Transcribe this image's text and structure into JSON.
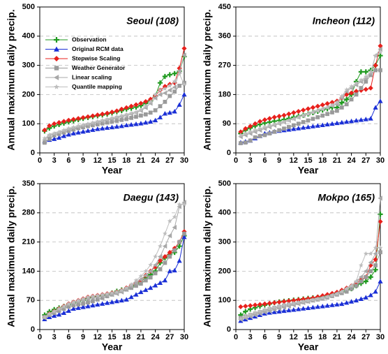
{
  "chart_data": [
    {
      "type": "line",
      "title": "Seoul (108)",
      "ylabel": "Annual maximum daily precip.",
      "xlabel": "Year",
      "x": [
        1,
        2,
        3,
        4,
        5,
        6,
        7,
        8,
        9,
        10,
        11,
        12,
        13,
        14,
        15,
        16,
        17,
        18,
        19,
        20,
        21,
        22,
        23,
        24,
        25,
        26,
        27,
        28,
        29,
        30
      ],
      "xlim": [
        0,
        30
      ],
      "xticks": [
        0,
        3,
        6,
        9,
        12,
        15,
        18,
        21,
        24,
        27,
        30
      ],
      "ylim": [
        0,
        500
      ],
      "yticks": [
        0,
        100,
        200,
        300,
        400,
        500
      ],
      "grid": true,
      "legend": "upper left",
      "series": [
        {
          "name": "Observation",
          "color": "#1f9a1f",
          "marker": "plus",
          "values": [
            75,
            85,
            92,
            97,
            102,
            106,
            110,
            114,
            118,
            121,
            124,
            127,
            130,
            133,
            137,
            141,
            145,
            150,
            153,
            157,
            162,
            170,
            178,
            195,
            240,
            262,
            268,
            272,
            280,
            330
          ]
        },
        {
          "name": "Original RCM data",
          "color": "#1a2fd6",
          "marker": "triangle",
          "values": [
            40,
            45,
            48,
            52,
            58,
            63,
            67,
            70,
            73,
            76,
            79,
            82,
            84,
            86,
            88,
            90,
            92,
            95,
            97,
            99,
            101,
            104,
            107,
            112,
            122,
            135,
            138,
            142,
            165,
            200
          ]
        },
        {
          "name": "Stepwise Scaling",
          "color": "#e8201c",
          "marker": "diamond",
          "values": [
            78,
            93,
            100,
            104,
            108,
            112,
            115,
            118,
            121,
            124,
            127,
            130,
            133,
            136,
            140,
            144,
            150,
            155,
            160,
            165,
            170,
            176,
            184,
            196,
            215,
            228,
            235,
            240,
            290,
            358
          ]
        },
        {
          "name": "Weather Generator",
          "color": "#9a9a9a",
          "marker": "square",
          "values": [
            35,
            48,
            60,
            65,
            70,
            75,
            80,
            85,
            88,
            92,
            95,
            98,
            101,
            104,
            107,
            110,
            113,
            116,
            120,
            124,
            128,
            132,
            138,
            146,
            160,
            175,
            195,
            210,
            230,
            240
          ]
        },
        {
          "name": "Linear scaling",
          "color": "#a8a8a8",
          "marker": "left-triangle",
          "values": [
            45,
            60,
            65,
            70,
            75,
            80,
            84,
            88,
            92,
            96,
            100,
            104,
            108,
            112,
            116,
            120,
            124,
            128,
            133,
            138,
            145,
            155,
            170,
            188,
            200,
            205,
            215,
            225,
            280,
            335
          ]
        },
        {
          "name": "Quantile mapping",
          "color": "#bdbdbd",
          "marker": "star",
          "values": [
            50,
            62,
            67,
            72,
            78,
            84,
            88,
            92,
            96,
            100,
            104,
            108,
            112,
            116,
            120,
            124,
            128,
            132,
            136,
            140,
            148,
            160,
            175,
            200,
            215,
            220,
            230,
            245,
            270,
            235
          ]
        }
      ]
    },
    {
      "type": "line",
      "title": "Incheon (112)",
      "ylabel": "Annual maximum daily precip.",
      "xlabel": "Year",
      "x": [
        1,
        2,
        3,
        4,
        5,
        6,
        7,
        8,
        9,
        10,
        11,
        12,
        13,
        14,
        15,
        16,
        17,
        18,
        19,
        20,
        21,
        22,
        23,
        24,
        25,
        26,
        27,
        28,
        29,
        30
      ],
      "xlim": [
        0,
        30
      ],
      "xticks": [
        0,
        3,
        6,
        9,
        12,
        15,
        18,
        21,
        24,
        27,
        30
      ],
      "ylim": [
        0,
        450
      ],
      "yticks": [
        0,
        90,
        180,
        270,
        360,
        450
      ],
      "grid": true,
      "series": [
        {
          "color": "#1f9a1f",
          "marker": "plus",
          "values": [
            60,
            70,
            77,
            83,
            88,
            92,
            95,
            98,
            100,
            103,
            106,
            110,
            113,
            116,
            120,
            124,
            128,
            132,
            136,
            140,
            140,
            155,
            165,
            180,
            220,
            250,
            250,
            255,
            270,
            300
          ]
        },
        {
          "color": "#1a2fd6",
          "marker": "triangle",
          "values": [
            32,
            35,
            38,
            45,
            52,
            60,
            63,
            66,
            68,
            70,
            72,
            74,
            76,
            78,
            80,
            82,
            84,
            86,
            88,
            90,
            92,
            94,
            96,
            98,
            100,
            102,
            104,
            106,
            140,
            160
          ]
        },
        {
          "color": "#e8201c",
          "marker": "diamond",
          "values": [
            65,
            75,
            82,
            90,
            97,
            102,
            106,
            110,
            113,
            116,
            120,
            124,
            128,
            132,
            136,
            140,
            144,
            148,
            152,
            156,
            160,
            170,
            180,
            185,
            190,
            193,
            196,
            200,
            270,
            330
          ]
        },
        {
          "color": "#9a9a9a",
          "marker": "square",
          "values": [
            30,
            32,
            38,
            48,
            52,
            55,
            60,
            65,
            70,
            75,
            80,
            85,
            90,
            95,
            100,
            105,
            110,
            115,
            120,
            125,
            130,
            140,
            150,
            165,
            180,
            200,
            220,
            240,
            255,
            255
          ]
        },
        {
          "color": "#a8a8a8",
          "marker": "left-triangle",
          "values": [
            50,
            55,
            60,
            65,
            70,
            75,
            80,
            85,
            90,
            95,
            100,
            105,
            110,
            115,
            120,
            125,
            130,
            135,
            140,
            145,
            150,
            170,
            190,
            200,
            210,
            220,
            230,
            245,
            300,
            320
          ]
        },
        {
          "color": "#bdbdbd",
          "marker": "star",
          "values": [
            55,
            60,
            65,
            70,
            75,
            80,
            84,
            88,
            92,
            96,
            100,
            105,
            110,
            115,
            120,
            125,
            130,
            135,
            140,
            148,
            156,
            175,
            195,
            205,
            215,
            225,
            235,
            250,
            300,
            310
          ]
        }
      ]
    },
    {
      "type": "line",
      "title": "Daegu (143)",
      "ylabel": "Annual maximum daily precip.",
      "xlabel": "Year",
      "x": [
        1,
        2,
        3,
        4,
        5,
        6,
        7,
        8,
        9,
        10,
        11,
        12,
        13,
        14,
        15,
        16,
        17,
        18,
        19,
        20,
        21,
        22,
        23,
        24,
        25,
        26,
        27,
        28,
        29,
        30
      ],
      "xlim": [
        0,
        30
      ],
      "xticks": [
        0,
        3,
        6,
        9,
        12,
        15,
        18,
        21,
        24,
        27,
        30
      ],
      "ylim": [
        0,
        350
      ],
      "yticks": [
        0,
        70,
        140,
        210,
        280,
        350
      ],
      "grid": true,
      "series": [
        {
          "color": "#1f9a1f",
          "marker": "plus",
          "values": [
            35,
            43,
            48,
            52,
            56,
            60,
            64,
            67,
            70,
            75,
            78,
            80,
            82,
            84,
            88,
            92,
            95,
            98,
            102,
            108,
            115,
            125,
            132,
            140,
            160,
            172,
            180,
            185,
            200,
            225
          ]
        },
        {
          "color": "#1a2fd6",
          "marker": "triangle",
          "values": [
            25,
            30,
            33,
            36,
            40,
            45,
            50,
            52,
            54,
            56,
            58,
            60,
            62,
            64,
            66,
            68,
            70,
            72,
            78,
            84,
            90,
            95,
            100,
            106,
            112,
            118,
            140,
            142,
            165,
            222
          ]
        },
        {
          "color": "#e8201c",
          "marker": "diamond",
          "values": [
            30,
            38,
            44,
            50,
            56,
            62,
            66,
            70,
            74,
            78,
            80,
            82,
            84,
            86,
            88,
            90,
            94,
            100,
            106,
            112,
            118,
            130,
            140,
            150,
            165,
            175,
            185,
            195,
            210,
            235
          ]
        },
        {
          "color": "#9a9a9a",
          "marker": "square",
          "values": [
            30,
            35,
            40,
            45,
            50,
            55,
            58,
            60,
            62,
            65,
            68,
            72,
            76,
            80,
            84,
            88,
            92,
            96,
            100,
            105,
            110,
            118,
            125,
            135,
            145,
            160,
            175,
            190,
            210,
            230
          ]
        },
        {
          "color": "#a8a8a8",
          "marker": "left-triangle",
          "values": [
            28,
            36,
            42,
            48,
            54,
            60,
            64,
            67,
            70,
            73,
            76,
            78,
            80,
            82,
            84,
            86,
            90,
            96,
            104,
            112,
            120,
            130,
            140,
            155,
            175,
            200,
            225,
            245,
            295,
            305
          ]
        },
        {
          "color": "#bdbdbd",
          "marker": "star",
          "values": [
            30,
            38,
            44,
            50,
            56,
            62,
            66,
            70,
            74,
            78,
            80,
            82,
            84,
            86,
            88,
            90,
            94,
            100,
            108,
            118,
            128,
            140,
            155,
            175,
            200,
            230,
            260,
            270,
            300,
            300
          ]
        }
      ]
    },
    {
      "type": "line",
      "title": "Mokpo (165)",
      "ylabel": "Annual maximum daily precip.",
      "xlabel": "Year",
      "x": [
        1,
        2,
        3,
        4,
        5,
        6,
        7,
        8,
        9,
        10,
        11,
        12,
        13,
        14,
        15,
        16,
        17,
        18,
        19,
        20,
        21,
        22,
        23,
        24,
        25,
        26,
        27,
        28,
        29,
        30
      ],
      "xlim": [
        0,
        30
      ],
      "xticks": [
        0,
        3,
        6,
        9,
        12,
        15,
        18,
        21,
        24,
        27,
        30
      ],
      "ylim": [
        0,
        500
      ],
      "yticks": [
        0,
        100,
        200,
        300,
        400,
        500
      ],
      "grid": true,
      "series": [
        {
          "color": "#1f9a1f",
          "marker": "plus",
          "values": [
            50,
            62,
            70,
            75,
            80,
            84,
            88,
            92,
            95,
            97,
            99,
            101,
            103,
            105,
            107,
            109,
            111,
            114,
            117,
            120,
            125,
            130,
            135,
            140,
            150,
            158,
            165,
            180,
            205,
            395
          ]
        },
        {
          "color": "#1a2fd6",
          "marker": "triangle",
          "values": [
            30,
            35,
            40,
            45,
            50,
            55,
            58,
            60,
            62,
            64,
            66,
            68,
            70,
            72,
            74,
            76,
            78,
            80,
            82,
            84,
            86,
            88,
            92,
            96,
            100,
            105,
            110,
            118,
            130,
            165
          ]
        },
        {
          "color": "#e8201c",
          "marker": "diamond",
          "values": [
            78,
            80,
            82,
            84,
            86,
            88,
            90,
            92,
            94,
            96,
            98,
            100,
            102,
            104,
            106,
            108,
            112,
            116,
            120,
            124,
            128,
            135,
            142,
            150,
            160,
            170,
            180,
            220,
            240,
            370
          ]
        },
        {
          "color": "#9a9a9a",
          "marker": "square",
          "values": [
            40,
            45,
            50,
            55,
            60,
            65,
            70,
            74,
            78,
            82,
            85,
            88,
            91,
            94,
            97,
            100,
            103,
            106,
            110,
            115,
            120,
            125,
            130,
            140,
            150,
            165,
            180,
            200,
            220,
            265
          ]
        },
        {
          "color": "#a8a8a8",
          "marker": "left-triangle",
          "values": [
            35,
            40,
            45,
            50,
            55,
            60,
            64,
            68,
            72,
            76,
            80,
            84,
            88,
            92,
            96,
            100,
            104,
            108,
            112,
            118,
            124,
            130,
            140,
            150,
            165,
            180,
            200,
            230,
            260,
            450
          ]
        },
        {
          "color": "#bdbdbd",
          "marker": "star",
          "values": [
            38,
            45,
            52,
            58,
            63,
            68,
            72,
            76,
            80,
            84,
            87,
            90,
            93,
            96,
            99,
            102,
            105,
            108,
            112,
            117,
            122,
            130,
            140,
            150,
            165,
            220,
            260,
            260,
            280,
            280
          ]
        }
      ]
    }
  ]
}
